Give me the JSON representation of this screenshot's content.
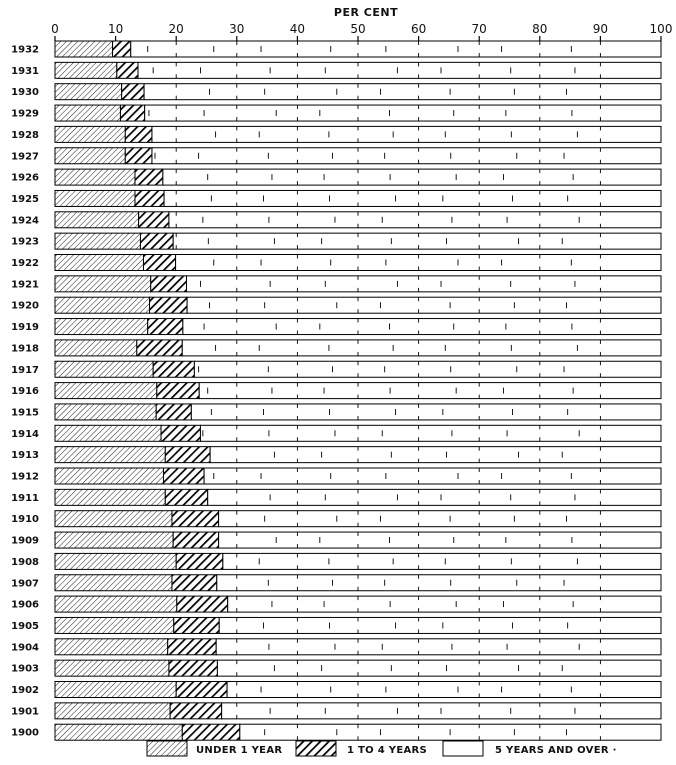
{
  "chart_data": {
    "type": "bar",
    "orientation": "horizontal",
    "stacked": true,
    "percent_stacked": true,
    "xlabel": "PER CENT",
    "ylabel": "",
    "xlim": [
      0,
      100
    ],
    "x_ticks": [
      0,
      10,
      20,
      30,
      40,
      50,
      60,
      70,
      80,
      90,
      100
    ],
    "grid": false,
    "legend_position": "bottom",
    "categories": [
      "1932",
      "1931",
      "1930",
      "1929",
      "1928",
      "1927",
      "1926",
      "1925",
      "1924",
      "1923",
      "1922",
      "1921",
      "1920",
      "1919",
      "1918",
      "1917",
      "1916",
      "1915",
      "1914",
      "1913",
      "1912",
      "1911",
      "1910",
      "1909",
      "1908",
      "1907",
      "1906",
      "1905",
      "1904",
      "1903",
      "1902",
      "1901",
      "1900"
    ],
    "category_labels": [
      "1932",
      "1931",
      "1930",
      "1929",
      "1928",
      "1927",
      "1926",
      "1925",
      "1924",
      "1923",
      "1922",
      "1921",
      "1920",
      "1919",
      "1918",
      "1917",
      "1916",
      "1915",
      "1914",
      "1913",
      "1912",
      "1911",
      "1910",
      "1909",
      "1908",
      "1907",
      "1906",
      "1905",
      "1904",
      "1903",
      "1902",
      "1901",
      "1900"
    ],
    "series": [
      {
        "name": "UNDER 1 YEAR",
        "pattern": "light-hatch",
        "values": [
          9.5,
          10.2,
          11.0,
          10.8,
          11.6,
          11.6,
          13.2,
          13.2,
          13.8,
          14.1,
          14.6,
          15.8,
          15.6,
          15.3,
          13.5,
          16.2,
          16.8,
          16.7,
          17.5,
          18.2,
          17.9,
          18.2,
          19.3,
          19.5,
          20.0,
          19.3,
          20.1,
          19.6,
          18.6,
          18.8,
          20.0,
          19.0,
          21.0
        ]
      },
      {
        "name": "1 TO 4 YEARS",
        "pattern": "heavy-hatch",
        "values": [
          3.0,
          3.5,
          3.7,
          4.0,
          4.4,
          4.4,
          4.6,
          4.8,
          5.0,
          5.4,
          5.3,
          5.9,
          6.2,
          5.8,
          7.5,
          6.8,
          7.0,
          5.8,
          6.5,
          7.4,
          6.7,
          7.0,
          7.7,
          7.5,
          7.7,
          7.4,
          8.4,
          7.5,
          8.0,
          8.0,
          8.4,
          8.5,
          9.5
        ]
      },
      {
        "name": "5 YEARS AND OVER",
        "pattern": "white",
        "values": [
          87.5,
          86.3,
          85.3,
          85.2,
          84.0,
          84.0,
          82.2,
          82.0,
          81.2,
          80.5,
          80.1,
          78.3,
          78.2,
          78.9,
          79.0,
          77.0,
          76.2,
          77.5,
          76.0,
          74.4,
          75.4,
          74.8,
          73.0,
          73.0,
          72.3,
          73.3,
          71.5,
          72.9,
          73.4,
          73.2,
          71.6,
          72.5,
          69.5
        ]
      }
    ],
    "legend": {
      "entries": [
        "UNDER 1 YEAR",
        "1 TO 4 YEARS",
        "5 YEARS AND OVER ·"
      ]
    }
  }
}
